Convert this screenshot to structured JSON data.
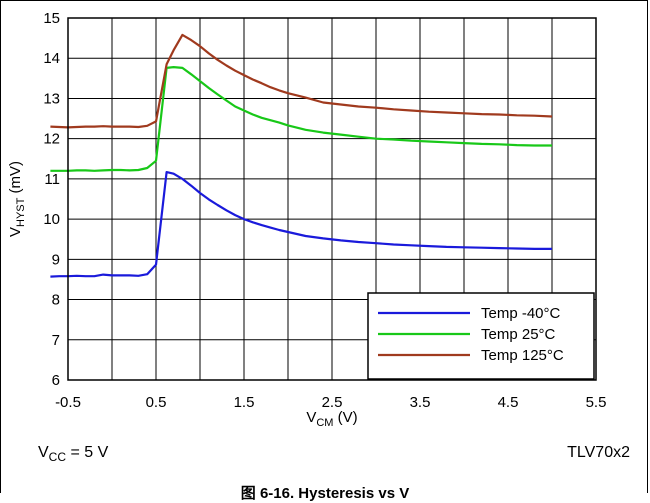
{
  "chart_data": {
    "type": "line",
    "xlabel": {
      "main": "V",
      "sub": "CM",
      "unit": " (V)"
    },
    "ylabel": {
      "main": "V",
      "sub": "HYST",
      "unit": " (mV)"
    },
    "xlim": [
      -0.5,
      5.5
    ],
    "ylim": [
      6,
      15
    ],
    "xticks": [
      -0.5,
      0.5,
      1.5,
      2.5,
      3.5,
      4.5,
      5.5
    ],
    "xtick_labels": [
      "-0.5",
      "0.5",
      "1.5",
      "2.5",
      "3.5",
      "4.5",
      "5.5"
    ],
    "yticks": [
      6,
      7,
      8,
      9,
      10,
      11,
      12,
      13,
      14,
      15
    ],
    "ytick_labels": [
      "6",
      "7",
      "8",
      "9",
      "10",
      "11",
      "12",
      "13",
      "14",
      "15"
    ],
    "xgrid": [
      0,
      0.5,
      1.0,
      1.5,
      2.0,
      2.5,
      3.0,
      3.5,
      4.0,
      4.5,
      5.0
    ],
    "grid": true,
    "legend_position": "bottom-right",
    "series": [
      {
        "name": "Temp -40°C",
        "color": "#1a1adb",
        "x": [
          -0.7,
          -0.6,
          -0.5,
          -0.4,
          -0.3,
          -0.2,
          -0.1,
          0.0,
          0.1,
          0.2,
          0.3,
          0.4,
          0.5,
          0.62,
          0.7,
          0.8,
          0.9,
          1.0,
          1.1,
          1.2,
          1.3,
          1.4,
          1.5,
          1.6,
          1.7,
          1.8,
          1.9,
          2.0,
          2.2,
          2.4,
          2.6,
          2.8,
          3.0,
          3.2,
          3.4,
          3.6,
          3.8,
          4.0,
          4.2,
          4.4,
          4.6,
          4.8,
          5.0
        ],
        "y": [
          8.57,
          8.58,
          8.58,
          8.59,
          8.58,
          8.58,
          8.62,
          8.6,
          8.6,
          8.6,
          8.59,
          8.63,
          8.87,
          11.17,
          11.13,
          11.0,
          10.83,
          10.65,
          10.49,
          10.35,
          10.22,
          10.1,
          10.0,
          9.92,
          9.85,
          9.79,
          9.73,
          9.68,
          9.58,
          9.52,
          9.47,
          9.43,
          9.4,
          9.37,
          9.35,
          9.33,
          9.31,
          9.3,
          9.29,
          9.28,
          9.27,
          9.26,
          9.26
        ]
      },
      {
        "name": "Temp 25°C",
        "color": "#18c818",
        "x": [
          -0.7,
          -0.6,
          -0.5,
          -0.4,
          -0.3,
          -0.2,
          -0.1,
          0.0,
          0.1,
          0.2,
          0.3,
          0.4,
          0.5,
          0.62,
          0.7,
          0.8,
          0.9,
          1.0,
          1.1,
          1.2,
          1.3,
          1.4,
          1.5,
          1.6,
          1.7,
          1.8,
          1.9,
          2.0,
          2.2,
          2.4,
          2.6,
          2.8,
          3.0,
          3.2,
          3.4,
          3.6,
          3.8,
          4.0,
          4.2,
          4.4,
          4.6,
          4.8,
          5.0
        ],
        "y": [
          11.2,
          11.2,
          11.2,
          11.21,
          11.21,
          11.2,
          11.21,
          11.22,
          11.22,
          11.21,
          11.22,
          11.27,
          11.45,
          13.76,
          13.78,
          13.76,
          13.6,
          13.43,
          13.26,
          13.1,
          12.95,
          12.8,
          12.7,
          12.6,
          12.52,
          12.46,
          12.4,
          12.33,
          12.22,
          12.15,
          12.1,
          12.05,
          12.0,
          11.98,
          11.95,
          11.93,
          11.91,
          11.89,
          11.87,
          11.86,
          11.84,
          11.83,
          11.83
        ]
      },
      {
        "name": "Temp 125°C",
        "color": "#a03a1e",
        "x": [
          -0.7,
          -0.6,
          -0.5,
          -0.4,
          -0.3,
          -0.2,
          -0.1,
          0.0,
          0.1,
          0.2,
          0.3,
          0.4,
          0.5,
          0.62,
          0.7,
          0.8,
          0.9,
          1.0,
          1.1,
          1.2,
          1.3,
          1.4,
          1.5,
          1.6,
          1.7,
          1.8,
          1.9,
          2.0,
          2.2,
          2.4,
          2.6,
          2.8,
          3.0,
          3.2,
          3.4,
          3.6,
          3.8,
          4.0,
          4.2,
          4.4,
          4.6,
          4.8,
          5.0
        ],
        "y": [
          12.3,
          12.29,
          12.28,
          12.29,
          12.3,
          12.3,
          12.31,
          12.3,
          12.3,
          12.3,
          12.29,
          12.32,
          12.43,
          13.85,
          14.2,
          14.58,
          14.45,
          14.3,
          14.12,
          13.96,
          13.82,
          13.69,
          13.58,
          13.47,
          13.38,
          13.28,
          13.2,
          13.13,
          13.02,
          12.9,
          12.85,
          12.8,
          12.77,
          12.73,
          12.7,
          12.67,
          12.65,
          12.63,
          12.61,
          12.6,
          12.58,
          12.57,
          12.55
        ]
      }
    ]
  },
  "footnote_left": {
    "main": "V",
    "sub": "CC",
    "rest": " = 5 V"
  },
  "footnote_right": "TLV70x2",
  "caption": "图 6-16. Hysteresis vs V"
}
